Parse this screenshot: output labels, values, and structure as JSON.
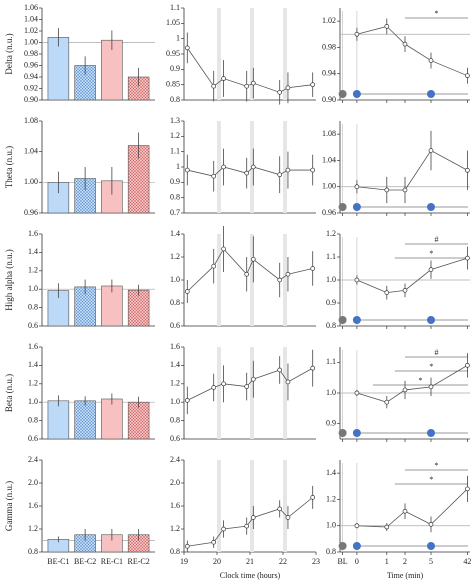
{
  "chart_data": [
    {
      "type": "bar",
      "ylabel": "Delta (n.u.)",
      "categories": [
        null,
        null,
        null,
        null
      ],
      "values": [
        1.009,
        0.96,
        1.004,
        0.94
      ],
      "errors": [
        0.016,
        0.016,
        0.017,
        0.016
      ],
      "colors": [
        "#bcd9f7",
        "#bcd9f7",
        "#f7c1c1",
        "#f7c1c1"
      ],
      "hatched": [
        false,
        true,
        false,
        true
      ],
      "hline": 1,
      "ylim": [
        0.9,
        1.06
      ],
      "yticks": [
        {
          "value": 0.9,
          "label": "0.90"
        },
        0.92,
        0.94,
        0.96,
        0.98,
        {
          "value": 1,
          "label": "1.00"
        },
        1.02,
        1.04,
        1.06
      ]
    },
    {
      "type": "line",
      "x": [
        19.1,
        19.9,
        20.2,
        20.9,
        21.1,
        21.9,
        22.15,
        22.9
      ],
      "values": [
        0.97,
        0.845,
        0.87,
        0.845,
        0.855,
        0.825,
        0.84,
        0.85
      ],
      "errors": [
        0.05,
        0.05,
        0.06,
        0.05,
        0.05,
        0.04,
        0.05,
        0.04
      ],
      "bands": [
        [
          20,
          20.12
        ],
        [
          21,
          21.12
        ],
        [
          22,
          22.12
        ]
      ],
      "xlim": [
        19,
        23
      ],
      "ylim": [
        0.8,
        1.1
      ],
      "yticks": [
        0.8,
        0.85,
        0.9,
        0.95,
        1,
        1.05,
        1.1
      ]
    },
    {
      "type": "line",
      "categories": [
        null,
        null,
        null,
        null,
        null,
        null
      ],
      "values": [
        null,
        1,
        1.012,
        0.985,
        0.96,
        0.937
      ],
      "errors": [
        null,
        0.01,
        0.012,
        0.012,
        0.012,
        0.012
      ],
      "hline": 1,
      "annotations": [
        "*"
      ],
      "ylim": [
        0.9,
        1.04
      ],
      "yticks": [
        {
          "value": 0.9,
          "label": "0.90"
        },
        0.94,
        0.98,
        1.02
      ]
    },
    {
      "type": "bar",
      "ylabel": "Theta (n.u.)",
      "categories": [
        null,
        null,
        null,
        null
      ],
      "values": [
        1,
        1.005,
        1.002,
        1.048
      ],
      "errors": [
        0.014,
        0.015,
        0.018,
        0.017
      ],
      "colors": [
        "#bcd9f7",
        "#bcd9f7",
        "#f7c1c1",
        "#f7c1c1"
      ],
      "hatched": [
        false,
        true,
        false,
        true
      ],
      "hline": 1,
      "ylim": [
        0.96,
        1.08
      ],
      "yticks": [
        0.96,
        {
          "value": 1,
          "label": "1.00"
        },
        1.04,
        1.08
      ]
    },
    {
      "type": "line",
      "x": [
        19.1,
        19.9,
        20.2,
        20.9,
        21.1,
        21.9,
        22.15,
        22.9
      ],
      "values": [
        0.98,
        0.94,
        1,
        0.96,
        1,
        0.95,
        0.98,
        0.98
      ],
      "errors": [
        0.1,
        0.1,
        0.12,
        0.1,
        0.12,
        0.12,
        0.12,
        0.1
      ],
      "bands": [
        [
          20,
          20.12
        ],
        [
          21,
          21.12
        ],
        [
          22,
          22.12
        ]
      ],
      "xlim": [
        19,
        23
      ],
      "ylim": [
        0.7,
        1.3
      ],
      "yticks": [
        0.7,
        0.8,
        0.9,
        1,
        1.1,
        1.2,
        1.3
      ]
    },
    {
      "type": "line",
      "categories": [
        null,
        null,
        null,
        null,
        null,
        null
      ],
      "values": [
        null,
        1,
        0.995,
        0.995,
        1.055,
        1.025
      ],
      "errors": [
        null,
        0.01,
        0.02,
        0.02,
        0.03,
        0.03
      ],
      "hline": 1,
      "annotations": [],
      "ylim": [
        0.96,
        1.1
      ],
      "yticks": [
        0.96,
        {
          "value": 1,
          "label": "1.00"
        },
        1.04,
        1.08
      ]
    },
    {
      "type": "bar",
      "ylabel": "High alpha (n.u.)",
      "categories": [
        null,
        null,
        null,
        null
      ],
      "values": [
        0.985,
        1.025,
        1.035,
        0.99
      ],
      "errors": [
        0.08,
        0.08,
        0.07,
        0.06
      ],
      "colors": [
        "#bcd9f7",
        "#bcd9f7",
        "#f7c1c1",
        "#f7c1c1"
      ],
      "hatched": [
        false,
        true,
        false,
        true
      ],
      "hline": 1,
      "ylim": [
        0.6,
        1.6
      ],
      "yticks": [
        0.6,
        0.8,
        {
          "value": 1,
          "label": "1.0"
        },
        1.2,
        1.4,
        1.6
      ]
    },
    {
      "type": "line",
      "x": [
        19.1,
        19.9,
        20.2,
        20.9,
        21.1,
        21.9,
        22.15,
        22.9
      ],
      "values": [
        0.9,
        1.12,
        1.27,
        1.05,
        1.18,
        1,
        1.05,
        1.1
      ],
      "errors": [
        0.1,
        0.15,
        0.2,
        0.15,
        0.2,
        0.15,
        0.15,
        0.15
      ],
      "bands": [
        [
          20,
          20.12
        ],
        [
          21,
          21.12
        ],
        [
          22,
          22.12
        ]
      ],
      "xlim": [
        19,
        23
      ],
      "ylim": [
        0.6,
        1.4
      ],
      "yticks": [
        0.6,
        0.8,
        {
          "value": 1,
          "label": "1.0"
        },
        1.2,
        1.4
      ]
    },
    {
      "type": "line",
      "categories": [
        null,
        null,
        null,
        null,
        null,
        null
      ],
      "values": [
        null,
        1,
        0.945,
        0.955,
        1.045,
        1.095
      ],
      "errors": [
        null,
        0.02,
        0.03,
        0.03,
        0.04,
        0.05
      ],
      "hline": 1,
      "annotations": [
        "#",
        "*"
      ],
      "ylim": [
        0.8,
        1.2
      ],
      "yticks": [
        0.8,
        0.9,
        {
          "value": 1,
          "label": "1.0"
        },
        1.1,
        1.2
      ]
    },
    {
      "type": "bar",
      "ylabel": "Beta (n.u.)",
      "categories": [
        null,
        null,
        null,
        null
      ],
      "values": [
        1.015,
        1.015,
        1.035,
        1
      ],
      "errors": [
        0.06,
        0.05,
        0.06,
        0.06
      ],
      "colors": [
        "#bcd9f7",
        "#bcd9f7",
        "#f7c1c1",
        "#f7c1c1"
      ],
      "hatched": [
        false,
        true,
        false,
        true
      ],
      "hline": 1,
      "ylim": [
        0.6,
        1.6
      ],
      "yticks": [
        0.6,
        0.8,
        {
          "value": 1,
          "label": "1.0"
        },
        1.2,
        1.4,
        1.6
      ]
    },
    {
      "type": "line",
      "x": [
        19.1,
        19.9,
        20.2,
        20.9,
        21.1,
        21.9,
        22.15,
        22.9
      ],
      "values": [
        1.02,
        1.16,
        1.2,
        1.17,
        1.25,
        1.35,
        1.22,
        1.37
      ],
      "errors": [
        0.15,
        0.15,
        0.2,
        0.15,
        0.2,
        0.15,
        0.2,
        0.2
      ],
      "bands": [
        [
          20,
          20.12
        ],
        [
          21,
          21.12
        ],
        [
          22,
          22.12
        ]
      ],
      "xlim": [
        19,
        23
      ],
      "ylim": [
        0.6,
        1.6
      ],
      "yticks": [
        0.6,
        0.8,
        {
          "value": 1,
          "label": "1.0"
        },
        1.2,
        1.4,
        1.6
      ]
    },
    {
      "type": "line",
      "categories": [
        null,
        null,
        null,
        null,
        null,
        null
      ],
      "values": [
        null,
        1,
        0.97,
        1.01,
        1.02,
        1.09
      ],
      "errors": [
        null,
        0.01,
        0.02,
        0.03,
        0.03,
        0.04
      ],
      "hline": 1,
      "annotations": [
        "#",
        "*",
        "*"
      ],
      "ylim": [
        0.85,
        1.15
      ],
      "yticks": [
        0.9,
        {
          "value": 1,
          "label": "1.0"
        },
        1.1
      ]
    },
    {
      "type": "bar",
      "ylabel": "Gamma (n.u.)",
      "categories": [
        "BE-C1",
        "BE-C2",
        "RE-C1",
        "RE-C2"
      ],
      "values": [
        1.02,
        1.1,
        1.1,
        1.1
      ],
      "errors": [
        0.05,
        0.1,
        0.1,
        0.1
      ],
      "colors": [
        "#bcd9f7",
        "#bcd9f7",
        "#f7c1c1",
        "#f7c1c1"
      ],
      "hatched": [
        false,
        true,
        false,
        true
      ],
      "hline": 1,
      "ylim": [
        0.8,
        2.4
      ],
      "yticks": [
        0.8,
        {
          "value": 1.2,
          "label": "1.2"
        },
        1.6,
        {
          "value": 2,
          "label": "2.0"
        },
        2.4
      ]
    },
    {
      "type": "line",
      "xlabel": "Clock time (hours)",
      "x": [
        19.1,
        19.9,
        20.2,
        20.9,
        21.1,
        21.9,
        22.15,
        22.9
      ],
      "values": [
        0.9,
        0.97,
        1.2,
        1.25,
        1.4,
        1.55,
        1.4,
        1.75
      ],
      "errors": [
        0.1,
        0.1,
        0.15,
        0.15,
        0.2,
        0.15,
        0.2,
        0.2
      ],
      "bands": [
        [
          20,
          20.12
        ],
        [
          21,
          21.12
        ],
        [
          22,
          22.12
        ]
      ],
      "xlim": [
        19,
        23
      ],
      "xticks": [
        19,
        20,
        21,
        22,
        23
      ],
      "ylim": [
        0.8,
        2.4
      ],
      "yticks": [
        0.8,
        1.2,
        1.6,
        {
          "value": 2,
          "label": "2.0"
        },
        2.4
      ]
    },
    {
      "type": "line",
      "xlabel": "Time (min)",
      "categories": [
        "BL",
        "0",
        "1",
        "2",
        "5",
        "42"
      ],
      "values": [
        null,
        1,
        0.99,
        1.11,
        1.01,
        1.28
      ],
      "errors": [
        null,
        0.02,
        0.03,
        0.06,
        0.06,
        0.1
      ],
      "hline": 1,
      "annotations": [
        "*",
        "*"
      ],
      "ylim": [
        0.8,
        1.5
      ],
      "yticks": [
        0.8,
        {
          "value": 1,
          "label": "1.0"
        },
        1.2,
        1.4
      ]
    }
  ]
}
